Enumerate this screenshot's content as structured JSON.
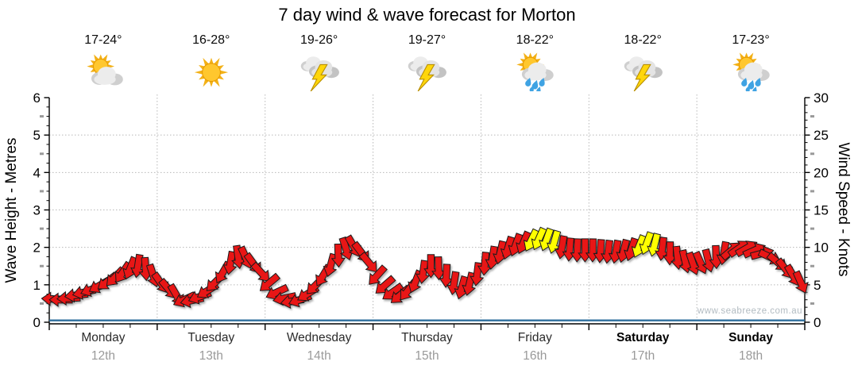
{
  "title": "7 day wind & wave forecast for Morton",
  "watermark": "www.seabreeze.com.au",
  "days": [
    {
      "name": "Monday",
      "date": "12th",
      "temp": "17-24°",
      "icon": "sun-cloud-icon",
      "weekend": false
    },
    {
      "name": "Tuesday",
      "date": "13th",
      "temp": "16-28°",
      "icon": "sun-icon",
      "weekend": false
    },
    {
      "name": "Wednesday",
      "date": "14th",
      "temp": "19-26°",
      "icon": "storm-icon",
      "weekend": false
    },
    {
      "name": "Thursday",
      "date": "15th",
      "temp": "19-27°",
      "icon": "storm-icon",
      "weekend": false
    },
    {
      "name": "Friday",
      "date": "16th",
      "temp": "18-22°",
      "icon": "sun-rain-icon",
      "weekend": false
    },
    {
      "name": "Saturday",
      "date": "17th",
      "temp": "18-22°",
      "icon": "storm-icon",
      "weekend": true
    },
    {
      "name": "Sunday",
      "date": "18th",
      "temp": "17-23°",
      "icon": "sun-rain-icon",
      "weekend": true
    }
  ],
  "chart_data": {
    "type": "wind-arrow-time-series",
    "title": "7 day wind & wave forecast for Morton",
    "left_axis": {
      "label": "Wave Height - Metres",
      "min": 0,
      "max": 6,
      "major_step": 1,
      "ticks": [
        0,
        1,
        2,
        3,
        4,
        5,
        6
      ]
    },
    "right_axis": {
      "label": "Wind Speed - Knots",
      "min": 0,
      "max": 30,
      "major_step": 5,
      "ticks": [
        0,
        5,
        10,
        15,
        20,
        25,
        30
      ]
    },
    "x_axis": {
      "days": [
        "Monday",
        "Tuesday",
        "Wednesday",
        "Thursday",
        "Friday",
        "Saturday",
        "Sunday"
      ],
      "dates": [
        "12th",
        "13th",
        "14th",
        "15th",
        "16th",
        "17th",
        "18th"
      ],
      "minor_ticks_per_day": 4
    },
    "grid": {
      "horizontal_at_knots": [
        5,
        10,
        15,
        20,
        25
      ],
      "vertical_at_day_boundaries": true
    },
    "wind_series": {
      "units": "knots",
      "points_per_day": 14,
      "knots_by_day": [
        [
          3.1,
          3.0,
          3.2,
          3.6,
          4.0,
          4.4,
          4.9,
          5.4,
          6.0,
          6.6,
          7.2,
          7.5,
          7.1,
          6.2
        ],
        [
          5.2,
          4.4,
          3.6,
          3.0,
          2.9,
          3.4,
          4.2,
          5.3,
          6.6,
          7.9,
          8.7,
          8.6,
          7.8,
          6.6
        ],
        [
          5.2,
          4.0,
          3.2,
          2.8,
          3.0,
          3.8,
          4.9,
          6.2,
          7.6,
          8.9,
          9.8,
          10.1,
          9.3,
          7.9
        ],
        [
          6.2,
          4.9,
          4.0,
          3.6,
          4.2,
          5.4,
          6.7,
          7.5,
          7.2,
          6.2,
          5.2,
          4.6,
          5.1,
          6.4
        ],
        [
          7.8,
          8.6,
          9.3,
          9.9,
          10.3,
          10.6,
          10.9,
          11.1,
          11.0,
          10.7,
          10.0,
          9.7,
          9.6,
          9.6
        ],
        [
          9.6,
          9.5,
          9.4,
          9.4,
          9.5,
          9.7,
          10.1,
          10.5,
          10.3,
          9.8,
          9.2,
          8.6,
          8.1,
          7.8
        ],
        [
          7.9,
          8.2,
          8.7,
          9.2,
          9.6,
          9.9,
          9.9,
          9.6,
          9.2,
          8.7,
          8.0,
          7.1,
          6.2,
          5.3
        ]
      ],
      "direction_deg_by_day": [
        [
          183,
          180,
          177,
          173,
          167,
          159,
          150,
          142,
          134,
          124,
          112,
          99,
          86,
          72
        ],
        [
          55,
          50,
          60,
          155,
          168,
          160,
          148,
          135,
          120,
          100,
          82,
          66,
          54,
          47
        ],
        [
          140,
          155,
          168,
          170,
          160,
          148,
          135,
          121,
          105,
          88,
          72,
          60,
          53,
          50
        ],
        [
          132,
          139,
          145,
          140,
          128,
          112,
          98,
          90,
          88,
          93,
          99,
          106,
          103,
          97
        ],
        [
          95,
          99,
          103,
          107,
          110,
          113,
          116,
          114,
          110,
          106,
          100,
          95,
          92,
          90
        ],
        [
          91,
          94,
          97,
          100,
          104,
          108,
          112,
          110,
          104,
          97,
          91,
          84,
          77,
          71
        ],
        [
          66,
          76,
          88,
          100,
          320,
          325,
          330,
          336,
          345,
          25,
          40,
          52,
          60,
          66
        ]
      ],
      "strong_color_indices_by_day": [
        [],
        [],
        [],
        [],
        [
          6,
          7,
          8,
          9
        ],
        [
          6,
          7,
          8
        ],
        []
      ]
    },
    "wave_series": {
      "units": "metres",
      "shape": "flat-line",
      "value_m": 0.05
    },
    "colors": {
      "wind_normal": "#e81414",
      "wind_strong": "#ffff00",
      "outline": "#1a1a1a",
      "wave_line": "#2e6f9e",
      "grid": "#b8b8b8",
      "date_text": "#9a9a9a"
    }
  }
}
